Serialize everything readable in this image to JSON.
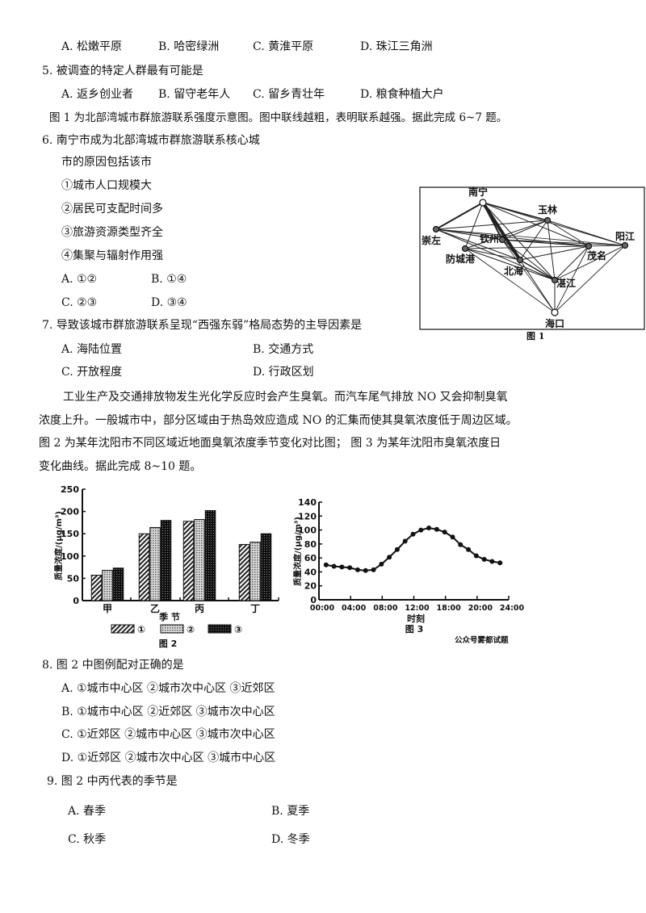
{
  "q4_options": [
    "A. 松嫩平原",
    "B. 哈密绿洲",
    "C. 黄淮平原",
    "D. 珠江三角洲"
  ],
  "q5": {
    "stem": "5.  被调查的特定人群最有可能是",
    "options": [
      "A. 返乡创业者",
      "B. 留守老年人",
      "C. 留乡青壮年",
      "D. 粮食种植大户"
    ]
  },
  "intro_6_7": "图 1 为北部湾城市群旅游联系强度示意图。图中联线越粗，表明联系越强。据此完成 6~7 题。",
  "q6": {
    "stem_1": "6.  南宁市成为北部湾城市群旅游联系核心城",
    "stem_2": "市的原因包括该市",
    "items": [
      "①城市人口规模大",
      "②居民可支配时间多",
      "③旅游资源类型齐全",
      "④集聚与辐射作用强"
    ],
    "options": [
      "A. ①②",
      "B. ①④",
      "C. ②③",
      "D. ③④"
    ]
  },
  "q7": {
    "stem": "7.  导致该城市群旅游联系呈现“西强东弱”格局态势的主导因素是",
    "options": [
      "A. 海陆位置",
      "B. 交通方式",
      "C. 开放程度",
      "D. 行政区划"
    ]
  },
  "intro_8_10": [
    "工业生产及交通排放物发生光化学反应时会产生臭氧。而汽车尾气排放 NO 又会抑制臭氧",
    "浓度上升。一般城市中，部分区域由于热岛效应造成 NO 的汇集而使其臭氧浓度低于周边区域。",
    "图 2 为某年沈阳市不同区域近地面臭氧浓度季节变化对比图；  图 3 为某年沈阳市臭氧浓度日",
    "变化曲线。据此完成 8~10 题。"
  ],
  "figure1": {
    "caption": "图 1",
    "cities": [
      "南宁",
      "崇左",
      "钦州",
      "防城港",
      "玉林",
      "北海",
      "茂名",
      "阳江",
      "湛江",
      "海口"
    ]
  },
  "chart_data": [
    {
      "type": "bar",
      "caption": "图 2",
      "categories": [
        "甲",
        "乙",
        "丙",
        "丁"
      ],
      "xlabel": "季 节",
      "ylabel": "质量浓度/(μg/m³)",
      "ylim": [
        0,
        250
      ],
      "yticks": [
        "0",
        "50",
        "100",
        "150",
        "200",
        "250"
      ],
      "series": [
        {
          "name": "①",
          "values": [
            57,
            150,
            178,
            126
          ]
        },
        {
          "name": "②",
          "values": [
            68,
            164,
            182,
            131
          ]
        },
        {
          "name": "③",
          "values": [
            73,
            180,
            202,
            150
          ]
        }
      ],
      "legend": "bottom"
    },
    {
      "type": "line",
      "caption": "图 3",
      "xlabel": "时刻",
      "ylabel": "质量浓度/(μg/m³)",
      "ylim": [
        0,
        140
      ],
      "yticks": [
        "0",
        "20",
        "40",
        "60",
        "80",
        "100",
        "120",
        "140"
      ],
      "xticks": [
        "00:00",
        "04:00",
        "08:00",
        "12:00",
        "18:00",
        "20:00",
        "24:00"
      ],
      "x": [
        1,
        2,
        3,
        4,
        5,
        6,
        7,
        8,
        9,
        10,
        11,
        12,
        13,
        14,
        15,
        16,
        17,
        18,
        19,
        20,
        21,
        22,
        23
      ],
      "values": [
        50,
        48,
        47,
        46,
        43,
        42,
        43,
        51,
        61,
        72,
        84,
        94,
        100,
        103,
        101,
        97,
        90,
        79,
        72,
        63,
        58,
        55,
        53
      ],
      "watermark": "公众号雾都试题"
    }
  ],
  "q8": {
    "stem": "8.  图 2 中图例配对正确的是",
    "options": [
      "A. ①城市中心区 ②城市次中心区 ③近郊区",
      "B. ①城市中心区 ②近郊区 ③城市次中心区",
      "C. ①近郊区 ②城市中心区 ③城市次中心区",
      "D. ①近郊区 ②城市次中心区 ③城市中心区"
    ]
  },
  "q9": {
    "stem": "9.  图 2 中丙代表的季节是",
    "options": [
      "A. 春季",
      "B. 夏季",
      "C. 秋季",
      "D. 冬季"
    ]
  }
}
